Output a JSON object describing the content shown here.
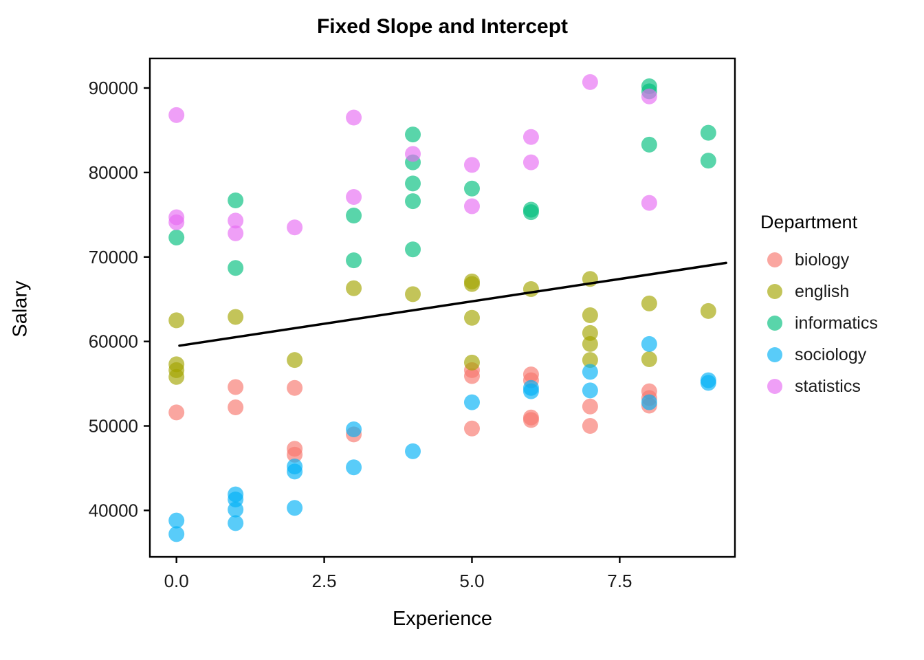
{
  "chart_data": {
    "type": "scatter",
    "title": "Fixed Slope and Intercept",
    "xlabel": "Experience",
    "ylabel": "Salary",
    "legend_title": "Department",
    "legend_position": "right",
    "grid": false,
    "xlim": [
      -0.45,
      9.45
    ],
    "ylim": [
      34500,
      93500
    ],
    "x_ticks": [
      0.0,
      2.5,
      5.0,
      7.5
    ],
    "x_tick_labels": [
      "0.0",
      "2.5",
      "5.0",
      "7.5"
    ],
    "y_ticks": [
      40000,
      50000,
      60000,
      70000,
      80000,
      90000
    ],
    "y_tick_labels": [
      "40000",
      "50000",
      "60000",
      "70000",
      "80000",
      "90000"
    ],
    "point_radius": 11.5,
    "point_alpha": 0.65,
    "text_color": "#000000",
    "panel_border_color": "#000000",
    "fit_line": {
      "label": "fixed slope and intercept line",
      "color": "#000000",
      "width": 3.5,
      "x": [
        0.05,
        9.3
      ],
      "y": [
        59500,
        69300
      ]
    },
    "series": [
      {
        "name": "biology",
        "color": "#F8766D",
        "points": [
          [
            0,
            51600
          ],
          [
            1,
            54600
          ],
          [
            1,
            52200
          ],
          [
            2,
            54500
          ],
          [
            2,
            47300
          ],
          [
            2,
            46600
          ],
          [
            3,
            49000
          ],
          [
            5,
            56600
          ],
          [
            5,
            55900
          ],
          [
            5,
            49700
          ],
          [
            6,
            56100
          ],
          [
            6,
            55400
          ],
          [
            6,
            51000
          ],
          [
            6,
            50700
          ],
          [
            7,
            52300
          ],
          [
            7,
            50000
          ],
          [
            8,
            54100
          ],
          [
            8,
            53300
          ],
          [
            8,
            52400
          ]
        ]
      },
      {
        "name": "english",
        "color": "#A3A500",
        "points": [
          [
            0,
            62500
          ],
          [
            0,
            57300
          ],
          [
            0,
            56600
          ],
          [
            0,
            55800
          ],
          [
            1,
            62900
          ],
          [
            2,
            57800
          ],
          [
            3,
            66300
          ],
          [
            4,
            65600
          ],
          [
            5,
            67100
          ],
          [
            5,
            66800
          ],
          [
            5,
            62800
          ],
          [
            5,
            57500
          ],
          [
            6,
            66200
          ],
          [
            7,
            67400
          ],
          [
            7,
            63100
          ],
          [
            7,
            61000
          ],
          [
            7,
            59700
          ],
          [
            7,
            57800
          ],
          [
            8,
            64500
          ],
          [
            8,
            57900
          ],
          [
            9,
            63600
          ]
        ]
      },
      {
        "name": "informatics",
        "color": "#00BF7D",
        "points": [
          [
            0,
            72300
          ],
          [
            1,
            76700
          ],
          [
            1,
            68700
          ],
          [
            3,
            74900
          ],
          [
            3,
            69600
          ],
          [
            4,
            84500
          ],
          [
            4,
            81200
          ],
          [
            4,
            78700
          ],
          [
            4,
            76600
          ],
          [
            4,
            70900
          ],
          [
            5,
            78100
          ],
          [
            6,
            75600
          ],
          [
            6,
            75300
          ],
          [
            8,
            90200
          ],
          [
            8,
            89600
          ],
          [
            8,
            83300
          ],
          [
            9,
            84700
          ],
          [
            9,
            81400
          ]
        ]
      },
      {
        "name": "sociology",
        "color": "#00B0F6",
        "points": [
          [
            0,
            38800
          ],
          [
            0,
            37200
          ],
          [
            1,
            41900
          ],
          [
            1,
            41300
          ],
          [
            1,
            40100
          ],
          [
            1,
            38500
          ],
          [
            2,
            45200
          ],
          [
            2,
            44600
          ],
          [
            2,
            40300
          ],
          [
            3,
            49600
          ],
          [
            3,
            45100
          ],
          [
            4,
            47000
          ],
          [
            5,
            52800
          ],
          [
            6,
            54500
          ],
          [
            6,
            54100
          ],
          [
            7,
            56400
          ],
          [
            7,
            54200
          ],
          [
            8,
            59700
          ],
          [
            8,
            52800
          ],
          [
            9,
            55400
          ],
          [
            9,
            55100
          ]
        ]
      },
      {
        "name": "statistics",
        "color": "#E76BF3",
        "points": [
          [
            0,
            86800
          ],
          [
            0,
            74700
          ],
          [
            0,
            74100
          ],
          [
            1,
            74300
          ],
          [
            1,
            72800
          ],
          [
            2,
            73500
          ],
          [
            3,
            86500
          ],
          [
            3,
            77100
          ],
          [
            4,
            82200
          ],
          [
            5,
            80900
          ],
          [
            5,
            76000
          ],
          [
            6,
            84200
          ],
          [
            6,
            81200
          ],
          [
            7,
            90700
          ],
          [
            8,
            89000
          ],
          [
            8,
            76400
          ]
        ]
      }
    ]
  }
}
